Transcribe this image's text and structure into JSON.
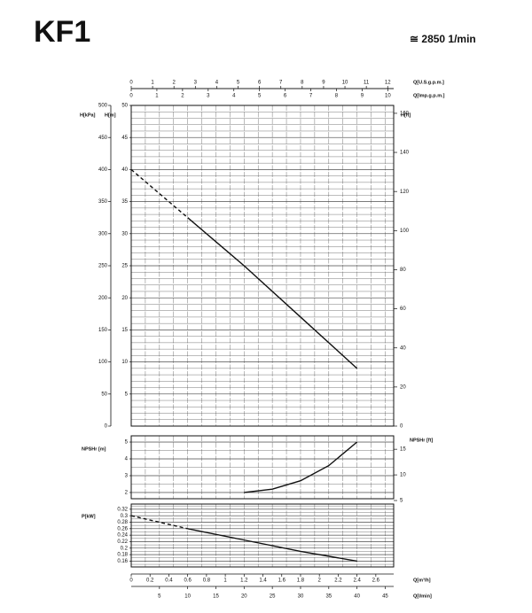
{
  "header": {
    "title": "KF1",
    "speed": "≅ 2850 1/min"
  },
  "x_axes": [
    {
      "label": "Q[U.S.g.p.m.]",
      "lim": [
        0,
        12.28
      ],
      "ticks": [
        0,
        1,
        2,
        3,
        4,
        5,
        6,
        7,
        8,
        9,
        10,
        11,
        12
      ],
      "position": "top-upper"
    },
    {
      "label": "Q[Imp.g.p.m.]",
      "lim": [
        0,
        10.23
      ],
      "ticks": [
        0,
        1,
        2,
        3,
        4,
        5,
        6,
        7,
        8,
        9,
        10
      ],
      "position": "top-lower"
    },
    {
      "label": "Q[m³/h]",
      "lim": [
        0,
        2.79
      ],
      "ticks": [
        0,
        0.2,
        0.4,
        0.6,
        0.8,
        1,
        1.2,
        1.4,
        1.6,
        1.8,
        2,
        2.2,
        2.4,
        2.6
      ],
      "position": "bottom-upper"
    },
    {
      "label": "Q[l/min]",
      "lim": [
        0,
        46.5
      ],
      "ticks": [
        5,
        10,
        15,
        20,
        25,
        30,
        35,
        40,
        45
      ],
      "position": "bottom-lower"
    }
  ],
  "chart_data": [
    {
      "type": "line",
      "xlim": [
        0,
        46.5
      ],
      "y_axes": [
        {
          "label": "H[kPa]",
          "lim": [
            0,
            500
          ],
          "ticks": [
            0,
            50,
            100,
            150,
            200,
            250,
            300,
            350,
            400,
            450,
            500
          ],
          "side": "outer-left"
        },
        {
          "label": "H[m]",
          "lim": [
            0,
            50
          ],
          "ticks": [
            5,
            10,
            15,
            20,
            25,
            30,
            35,
            40,
            45,
            50
          ],
          "side": "left",
          "grid": true
        },
        {
          "label": "H[ft]",
          "lim": [
            0,
            164.04
          ],
          "ticks": [
            0,
            20,
            40,
            60,
            80,
            100,
            120,
            140,
            160
          ],
          "side": "right"
        }
      ],
      "series": [
        {
          "x": [
            0,
            10
          ],
          "values": [
            40,
            32.5
          ],
          "dashed": true,
          "color": "#111"
        },
        {
          "x": [
            10,
            20,
            30,
            40
          ],
          "values": [
            32.5,
            25,
            17,
            9
          ],
          "dashed": false,
          "color": "#111"
        }
      ]
    },
    {
      "type": "line",
      "xlim": [
        0,
        46.5
      ],
      "y_axes": [
        {
          "label": "NPSHr [m]",
          "lim": [
            1.63,
            5.37
          ],
          "ticks": [
            2,
            3,
            4,
            5
          ],
          "side": "left",
          "grid": true
        },
        {
          "label": "NPSHr [ft]",
          "lim": [
            5.35,
            17.62
          ],
          "ticks": [
            5,
            10,
            15
          ],
          "side": "right"
        }
      ],
      "series": [
        {
          "x": [
            20,
            25,
            30,
            35,
            40
          ],
          "values": [
            2,
            2.2,
            2.7,
            3.6,
            5
          ],
          "dashed": false,
          "color": "#111"
        }
      ]
    },
    {
      "type": "line",
      "xlim": [
        0,
        46.5
      ],
      "y_axes": [
        {
          "label": "P[kW]",
          "lim": [
            0.142,
            0.336
          ],
          "ticks": [
            0.16,
            0.18,
            0.2,
            0.22,
            0.24,
            0.26,
            0.28,
            0.3,
            0.32
          ],
          "side": "left",
          "grid": true
        }
      ],
      "series": [
        {
          "x": [
            0,
            10
          ],
          "values": [
            0.3,
            0.26
          ],
          "dashed": true,
          "color": "#111"
        },
        {
          "x": [
            10,
            20,
            30,
            40
          ],
          "values": [
            0.26,
            0.225,
            0.19,
            0.16
          ],
          "dashed": false,
          "color": "#111"
        }
      ]
    }
  ]
}
